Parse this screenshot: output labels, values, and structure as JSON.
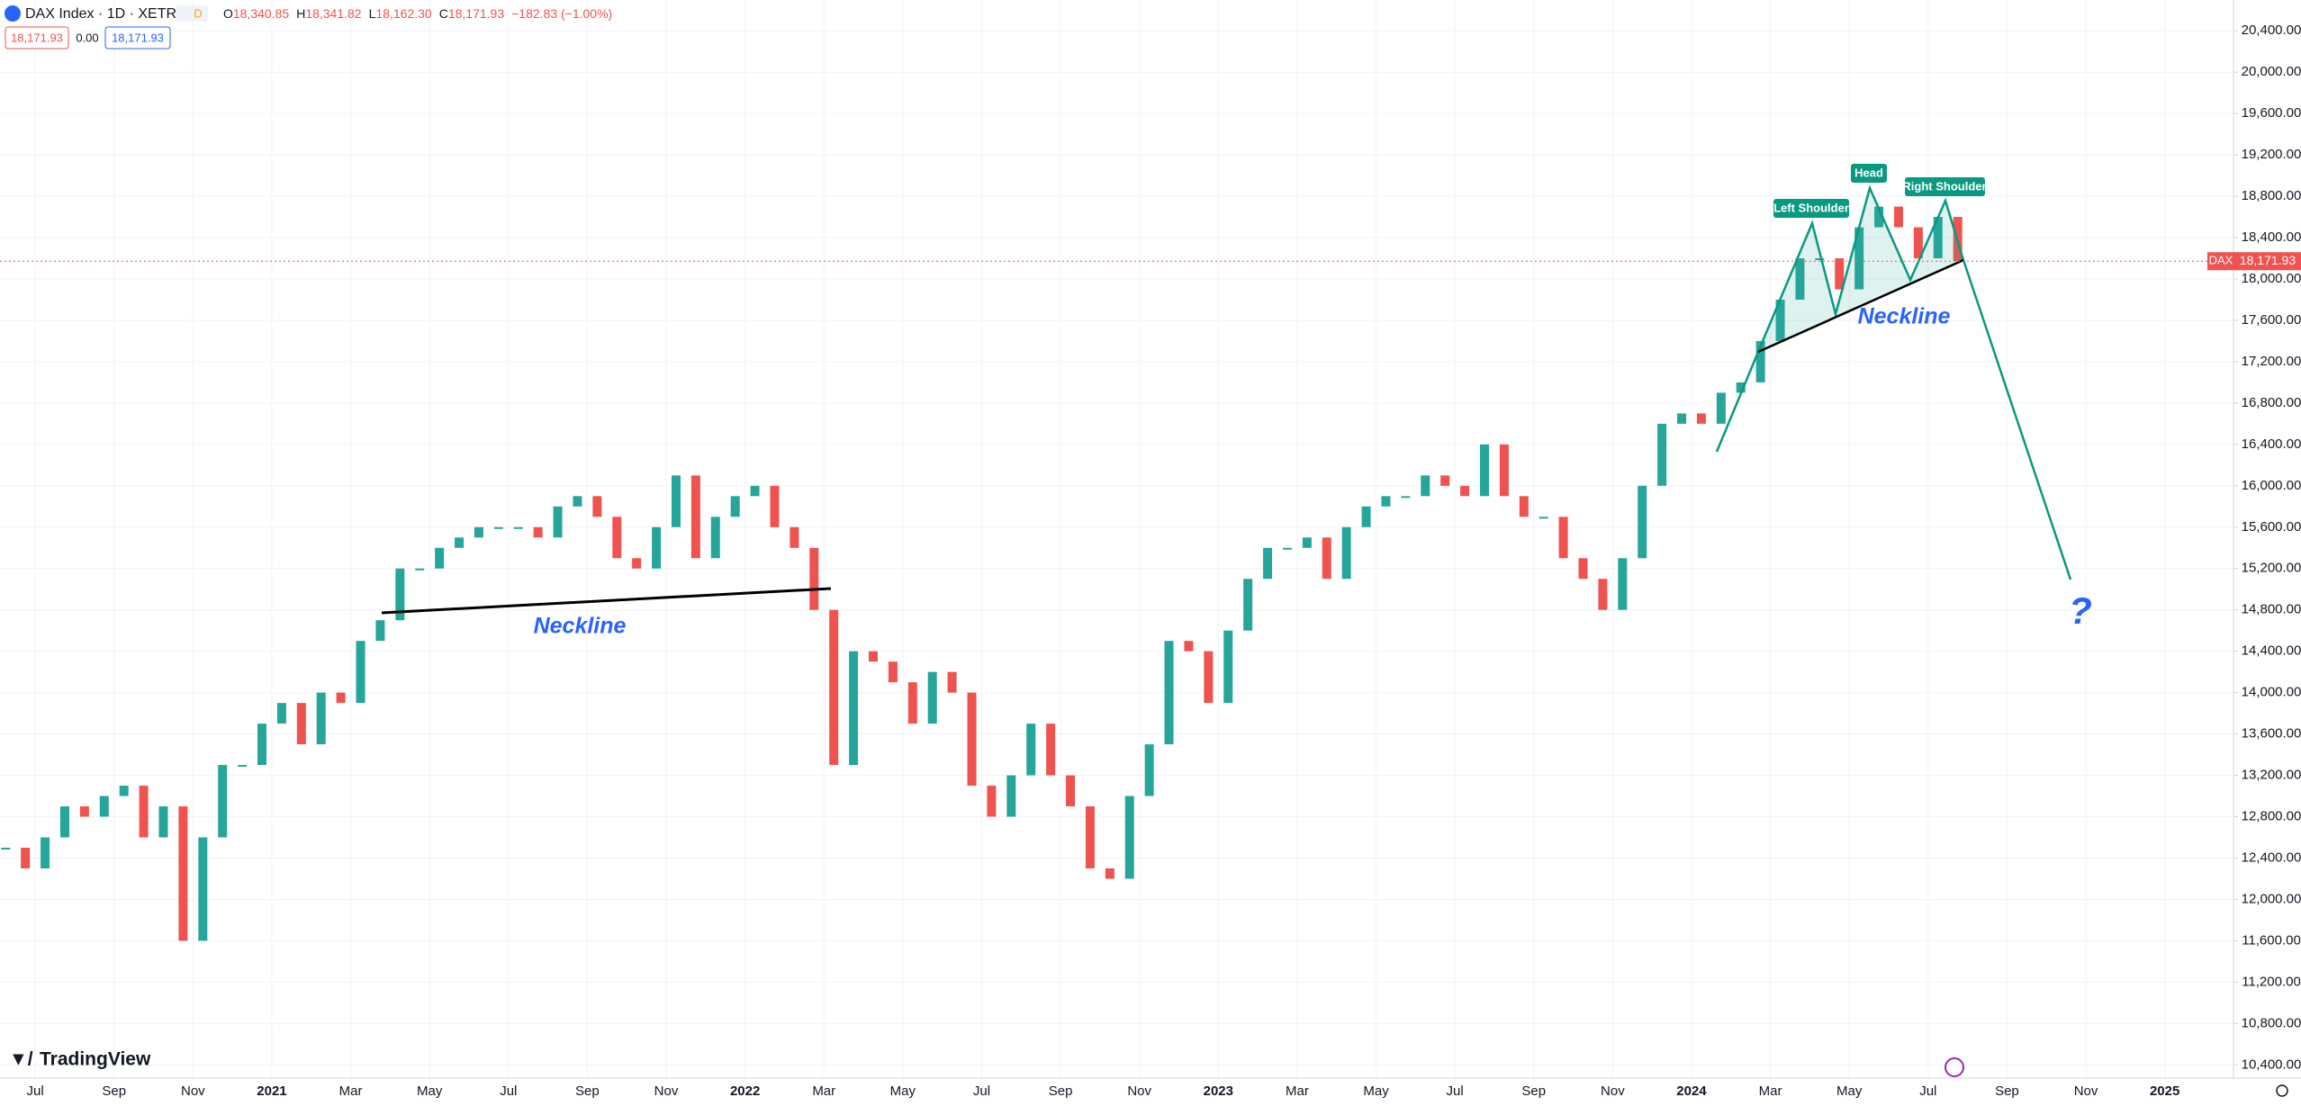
{
  "chart_data": {
    "type": "candlestick",
    "title": "DAX Index · 1D · XETR",
    "interval_badge": "D",
    "ohlc": [
      {
        "key": "O",
        "text": "18,340.85"
      },
      {
        "key": "H",
        "text": "18,341.82"
      },
      {
        "key": "L",
        "text": "18,162.30"
      },
      {
        "key": "C",
        "text": "18,171.93"
      }
    ],
    "change": "−182.83 (−1.00%)",
    "quote_boxes": [
      "18,171.93",
      "0.00",
      "18,171.93"
    ],
    "series": [
      {
        "name": "DAX",
        "up_color": "#26a69a",
        "down_color": "#ef5350",
        "values": [
          12500,
          12300,
          12600,
          12900,
          12800,
          13000,
          13100,
          12600,
          12900,
          11600,
          12600,
          13300,
          13300,
          13700,
          13900,
          13500,
          14000,
          13900,
          14500,
          14700,
          15200,
          15200,
          15400,
          15500,
          15600,
          15600,
          15600,
          15500,
          15800,
          15900,
          15700,
          15300,
          15200,
          15600,
          16100,
          15300,
          15700,
          15900,
          16000,
          15600,
          15400,
          14800,
          13300,
          14400,
          14300,
          14100,
          13700,
          14200,
          14000,
          13100,
          12800,
          13200,
          13700,
          13200,
          12900,
          12300,
          12200,
          13000,
          13500,
          14500,
          14400,
          13900,
          14600,
          15100,
          15400,
          15400,
          15500,
          15100,
          15600,
          15800,
          15900,
          15900,
          16100,
          16000,
          15900,
          16400,
          15900,
          15700,
          15700,
          15300,
          15100,
          14800,
          15300,
          16000,
          16600,
          16700,
          16600,
          16900,
          17000,
          17400,
          17800,
          18200,
          18200,
          17900,
          18500,
          18700,
          18500,
          18200,
          18600,
          18171.93
        ]
      }
    ],
    "price_line": {
      "value": 18171.93,
      "label": "18,171.93",
      "color": "#ef5350"
    },
    "x_labels": [
      "Jul",
      "Sep",
      "Nov",
      "2021",
      "Mar",
      "May",
      "Jul",
      "Sep",
      "Nov",
      "2022",
      "Mar",
      "May",
      "Jul",
      "Sep",
      "Nov",
      "2023",
      "Mar",
      "May",
      "Jul",
      "Sep",
      "Nov",
      "2024",
      "Mar",
      "May",
      "Jul",
      "Sep",
      "Nov",
      "2025"
    ],
    "ylim": [
      10272,
      20698
    ],
    "yticks": [
      {
        "value": 10400,
        "label": "10,400.00"
      },
      {
        "value": 10800,
        "label": "10,800.00"
      },
      {
        "value": 11200,
        "label": "11,200.00"
      },
      {
        "value": 11600,
        "label": "11,600.00"
      },
      {
        "value": 12000,
        "label": "12,000.00"
      },
      {
        "value": 12400,
        "label": "12,400.00"
      },
      {
        "value": 12800,
        "label": "12,800.00"
      },
      {
        "value": 13200,
        "label": "13,200.00"
      },
      {
        "value": 13600,
        "label": "13,600.00"
      },
      {
        "value": 14000,
        "label": "14,000.00"
      },
      {
        "value": 14400,
        "label": "14,400.00"
      },
      {
        "value": 14800,
        "label": "14,800.00"
      },
      {
        "value": 15200,
        "label": "15,200.00"
      },
      {
        "value": 15600,
        "label": "15,600.00"
      },
      {
        "value": 16000,
        "label": "16,000.00"
      },
      {
        "value": 16400,
        "label": "16,400.00"
      },
      {
        "value": 16800,
        "label": "16,800.00"
      },
      {
        "value": 17200,
        "label": "17,200.00"
      },
      {
        "value": 17600,
        "label": "17,600.00"
      },
      {
        "value": 18000,
        "label": "18,000.00"
      },
      {
        "value": 18400,
        "label": "18,400.00"
      },
      {
        "value": 18800,
        "label": "18,800.00"
      },
      {
        "value": 19200,
        "label": "19,200.00"
      },
      {
        "value": 19600,
        "label": "19,600.00"
      },
      {
        "value": 20000,
        "label": "20,000.00"
      },
      {
        "value": 20400,
        "label": "20,400.00"
      }
    ],
    "grid": true,
    "annotations": {
      "neckline_1": "Neckline",
      "neckline_2": "Neckline",
      "left_shoulder": "Left Shoulder",
      "head": "Head",
      "right_shoulder": "Right Shoulder",
      "question": "?"
    },
    "brand": "TradingView"
  }
}
